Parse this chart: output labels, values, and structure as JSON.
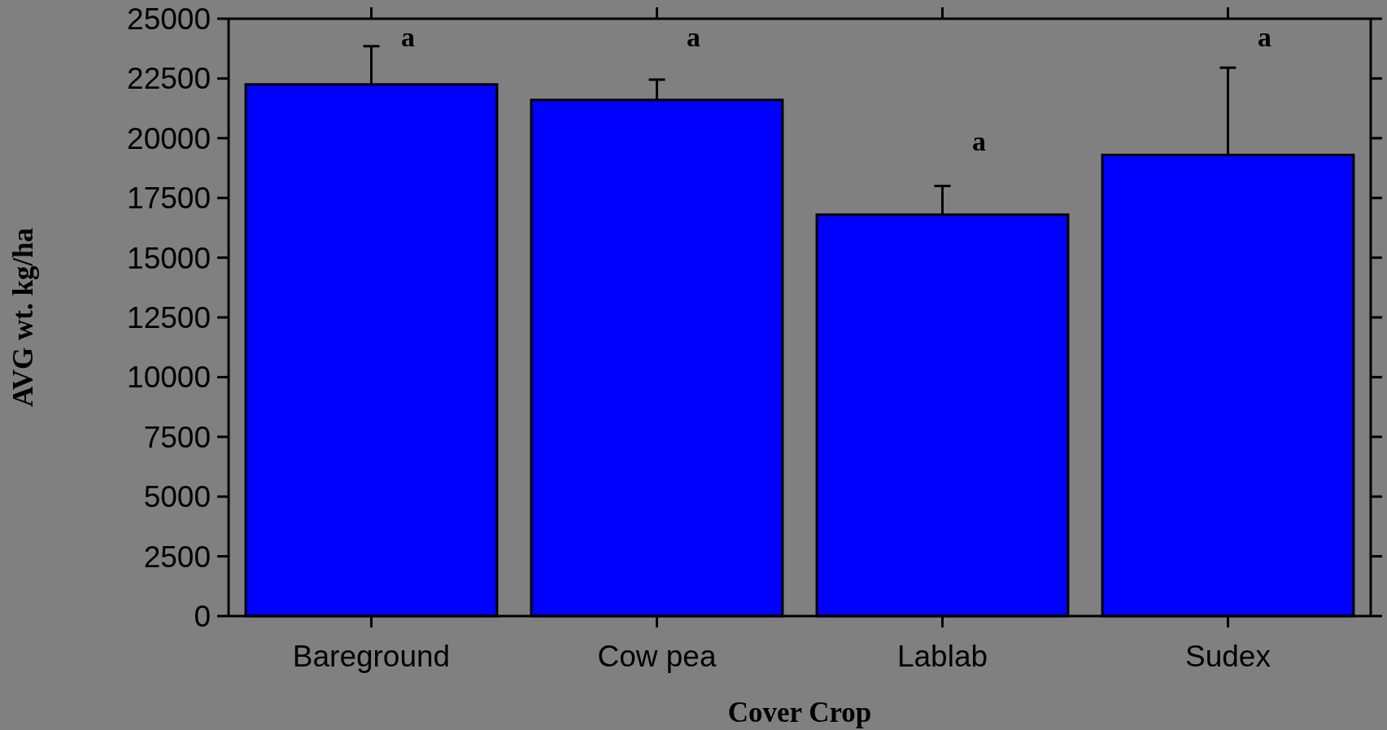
{
  "chart_data": {
    "type": "bar",
    "xlabel": "Cover Crop",
    "ylabel": "AVG wt. kg/ha",
    "categories": [
      "Bareground",
      "Cow pea",
      "Lablab",
      "Sudex"
    ],
    "values": [
      22250,
      21600,
      16800,
      19300
    ],
    "errors": [
      1600,
      850,
      1200,
      3650
    ],
    "color": "#0000ff",
    "ylim": [
      0,
      25000
    ],
    "yticks": [
      0,
      2500,
      5000,
      7500,
      10000,
      12500,
      15000,
      17500,
      20000,
      22500,
      25000
    ],
    "annotations": [
      "a",
      "a",
      "a",
      "a"
    ]
  }
}
